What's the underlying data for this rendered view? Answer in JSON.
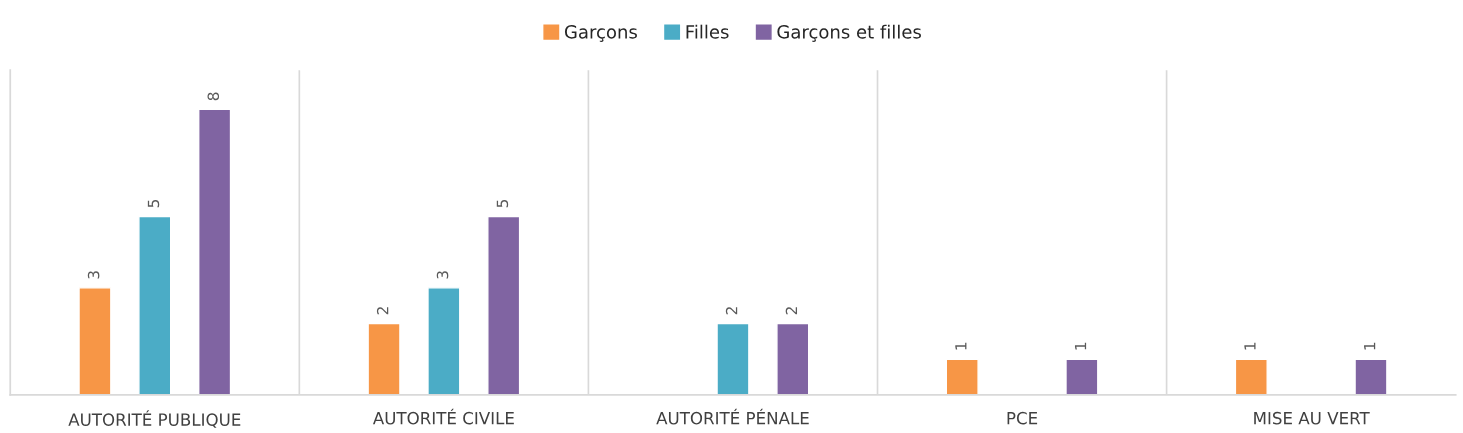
{
  "chart_data": {
    "type": "bar",
    "categories": [
      "AUTORITÉ PUBLIQUE",
      "AUTORITÉ CIVILE",
      "AUTORITÉ PÉNALE",
      "PCE",
      "MISE AU VERT"
    ],
    "series": [
      {
        "name": "Garçons",
        "color": "#f79646",
        "values": [
          3,
          2,
          null,
          1,
          1
        ]
      },
      {
        "name": "Filles",
        "color": "#4bacc6",
        "values": [
          5,
          3,
          2,
          null,
          null
        ]
      },
      {
        "name": "Garçons et filles",
        "color": "#8064a2",
        "values": [
          8,
          5,
          2,
          1,
          1
        ]
      }
    ],
    "ylim": [
      0,
      9.1
    ],
    "tick_labels": "x",
    "data_labels": true,
    "grid": "x",
    "legend": "top"
  }
}
